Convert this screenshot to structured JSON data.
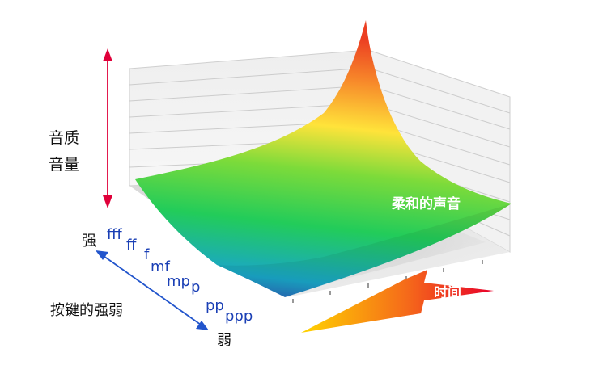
{
  "axis_labels": {
    "vertical_line1": "音质",
    "vertical_line2": "音量",
    "touch_axis": "按键的强弱",
    "strong": "强",
    "weak": "弱",
    "time": "时间"
  },
  "surface_label": "柔和的声音",
  "dynamics": [
    "fff",
    "ff",
    "f",
    "mf",
    "mp",
    "p",
    "pp",
    "ppp"
  ],
  "colors": {
    "red_arrow": "#e0003a",
    "blue_arrow": "#2255cc",
    "dynamics_text": "#1a3fb5",
    "time_arrow_start": "#ffd400",
    "time_arrow_end": "#e8002a",
    "surface_top": "#f04a22",
    "surface_mid": "#ffe33a",
    "surface_low": "#2ccc55",
    "surface_bottom": "#3340b0"
  }
}
